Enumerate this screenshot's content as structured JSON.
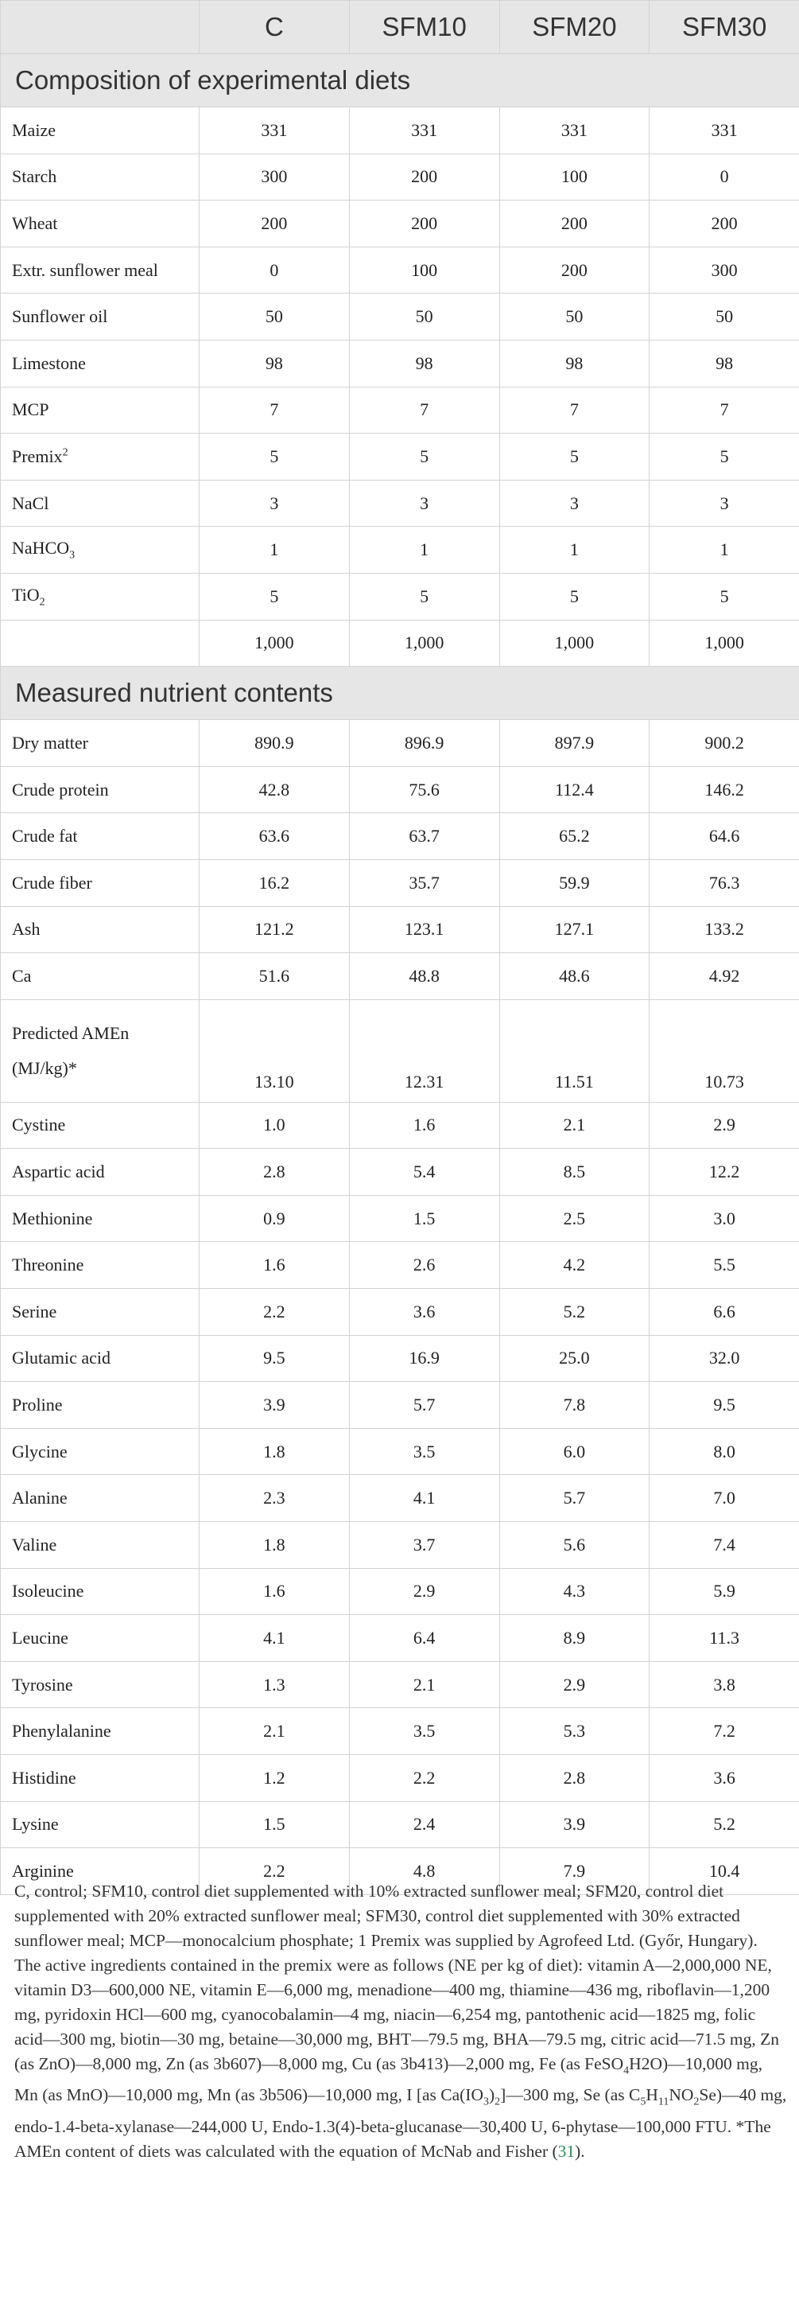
{
  "header": {
    "blank": "",
    "columns": [
      "C",
      "SFM10",
      "SFM20",
      "SFM30"
    ]
  },
  "sections": [
    {
      "title": "Composition of experimental diets",
      "rows": [
        {
          "label": "Maize",
          "values": [
            "331",
            "331",
            "331",
            "331"
          ]
        },
        {
          "label": "Starch",
          "values": [
            "300",
            "200",
            "100",
            "0"
          ]
        },
        {
          "label": "Wheat",
          "values": [
            "200",
            "200",
            "200",
            "200"
          ]
        },
        {
          "label": "Extr. sunflower meal",
          "values": [
            "0",
            "100",
            "200",
            "300"
          ]
        },
        {
          "label": "Sunflower oil",
          "values": [
            "50",
            "50",
            "50",
            "50"
          ]
        },
        {
          "label": "Limestone",
          "values": [
            "98",
            "98",
            "98",
            "98"
          ]
        },
        {
          "label": "MCP",
          "values": [
            "7",
            "7",
            "7",
            "7"
          ]
        },
        {
          "label": "Premix",
          "label_sup": "2",
          "values": [
            "5",
            "5",
            "5",
            "5"
          ]
        },
        {
          "label": "NaCl",
          "values": [
            "3",
            "3",
            "3",
            "3"
          ]
        },
        {
          "label": "NaHCO",
          "label_sub": "3",
          "values": [
            "1",
            "1",
            "1",
            "1"
          ]
        },
        {
          "label": "TiO",
          "label_sub": "2",
          "values": [
            "5",
            "5",
            "5",
            "5"
          ]
        },
        {
          "label": "",
          "values": [
            "1,000",
            "1,000",
            "1,000",
            "1,000"
          ]
        }
      ]
    },
    {
      "title": "Measured nutrient contents",
      "rows": [
        {
          "label": "Dry matter",
          "values": [
            "890.9",
            "896.9",
            "897.9",
            "900.2"
          ]
        },
        {
          "label": "Crude protein",
          "values": [
            "42.8",
            "75.6",
            "112.4",
            "146.2"
          ]
        },
        {
          "label": "Crude fat",
          "values": [
            "63.6",
            "63.7",
            "65.2",
            "64.6"
          ]
        },
        {
          "label": "Crude fiber",
          "values": [
            "16.2",
            "35.7",
            "59.9",
            "76.3"
          ]
        },
        {
          "label": "Ash",
          "values": [
            "121.2",
            "123.1",
            "127.1",
            "133.2"
          ]
        },
        {
          "label": "Ca",
          "values": [
            "51.6",
            "48.8",
            "48.6",
            "4.92"
          ]
        },
        {
          "label": "Predicted AMEn",
          "label_line2": "(MJ/kg)*",
          "values": [
            "13.10",
            "12.31",
            "11.51",
            "10.73"
          ]
        },
        {
          "label": "Cystine",
          "values": [
            "1.0",
            "1.6",
            "2.1",
            "2.9"
          ]
        },
        {
          "label": "Aspartic acid",
          "values": [
            "2.8",
            "5.4",
            "8.5",
            "12.2"
          ]
        },
        {
          "label": "Methionine",
          "values": [
            "0.9",
            "1.5",
            "2.5",
            "3.0"
          ]
        },
        {
          "label": "Threonine",
          "values": [
            "1.6",
            "2.6",
            "4.2",
            "5.5"
          ]
        },
        {
          "label": "Serine",
          "values": [
            "2.2",
            "3.6",
            "5.2",
            "6.6"
          ]
        },
        {
          "label": "Glutamic acid",
          "values": [
            "9.5",
            "16.9",
            "25.0",
            "32.0"
          ]
        },
        {
          "label": "Proline",
          "values": [
            "3.9",
            "5.7",
            "7.8",
            "9.5"
          ]
        },
        {
          "label": "Glycine",
          "values": [
            "1.8",
            "3.5",
            "6.0",
            "8.0"
          ]
        },
        {
          "label": "Alanine",
          "values": [
            "2.3",
            "4.1",
            "5.7",
            "7.0"
          ]
        },
        {
          "label": "Valine",
          "values": [
            "1.8",
            "3.7",
            "5.6",
            "7.4"
          ]
        },
        {
          "label": "Isoleucine",
          "values": [
            "1.6",
            "2.9",
            "4.3",
            "5.9"
          ]
        },
        {
          "label": "Leucine",
          "values": [
            "4.1",
            "6.4",
            "8.9",
            "11.3"
          ]
        },
        {
          "label": "Tyrosine",
          "values": [
            "1.3",
            "2.1",
            "2.9",
            "3.8"
          ]
        },
        {
          "label": "Phenylalanine",
          "values": [
            "2.1",
            "3.5",
            "5.3",
            "7.2"
          ]
        },
        {
          "label": "Histidine",
          "values": [
            "1.2",
            "2.2",
            "2.8",
            "3.6"
          ]
        },
        {
          "label": "Lysine",
          "values": [
            "1.5",
            "2.4",
            "3.9",
            "5.2"
          ]
        },
        {
          "label": "Arginine",
          "values": [
            "2.2",
            "4.8",
            "7.9",
            "10.4"
          ]
        }
      ]
    }
  ],
  "footnote": {
    "p1": "C, control; SFM10, control diet supplemented with 10% extracted sunflower meal; SFM20, control diet supplemented with 20% extracted sunflower meal; SFM30, control diet supplemented with 30% extracted sunflower meal; MCP—monocalcium phosphate; 1 Premix was supplied by Agrofeed Ltd. (Győr, Hungary). The active ingredients contained in the premix were as follows (NE per kg of diet): vitamin A—2,000,000 NE, vitamin D3—600,000 NE, vitamin E—6,000 mg, menadione—400 mg, thiamine—436 mg, riboflavin—1,200 mg, pyridoxin HCl—600 mg, cyanocobalamin—4 mg, niacin—6,254 mg, pantothenic acid—1825 mg, folic acid—300 mg, biotin—30 mg, betaine—30,000 mg, BHT—79.5 mg, BHA—79.5 mg, citric acid—71.5 mg, Zn (as ZnO)—8,000 mg, Zn (as 3b607)—8,000 mg, Cu (as 3b413)—2,000 mg, Fe (as FeSO",
    "sub_4": "4",
    "p2": "H2O)—10,000 mg, Mn (as MnO)—10,000 mg, Mn (as 3b506)—10,000 mg, I [as Ca(IO",
    "sub_3": "3",
    "p3": ")",
    "sub_2": "2",
    "p4": "]—300 mg, Se (as C",
    "sub_5": "5",
    "p5": "H",
    "sub_11": "11",
    "p6": "NO",
    "sub_2b": "2",
    "p7": "Se)—40 mg, endo-1.4-beta-xylanase—244,000 U, Endo-1.3(4)-beta-glucanase—30,400 U, 6-phytase—100,000 FTU. *The AMEn content of diets was calculated with the equation of McNab and Fisher (",
    "ref": "31",
    "p8": ")."
  }
}
